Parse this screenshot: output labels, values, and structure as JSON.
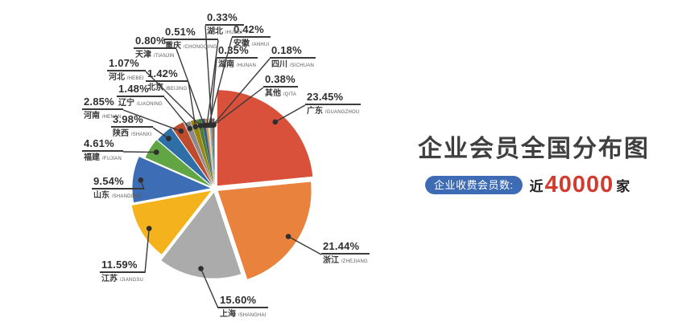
{
  "title": "企业会员全国分布图",
  "stat": {
    "badge_label": "企业收费会员数:",
    "prefix": "近",
    "value": "40000",
    "suffix": "家"
  },
  "colors": {
    "accent_red": "#d23b2e",
    "badge_blue": "#3e6cb4",
    "leader_line": "#3a3a3a",
    "title_text": "#3f3f3f",
    "background": "#ffffff"
  },
  "chart_data": {
    "type": "pie",
    "variant": "exploded-rose",
    "title": "企业会员全国分布图",
    "unit": "%",
    "start_angle_deg": 0,
    "clockwise": true,
    "center": [
      266.5,
      235
    ],
    "radius_base": 82,
    "radius_per_value": 1.58,
    "explode": 5,
    "dot_radius_factor": 0.9,
    "series": [
      {
        "name": "广东",
        "pinyin": "GUANGZHOU",
        "value": 23.45,
        "color": "#d9513a",
        "label": {
          "x": 379,
          "y": 113
        }
      },
      {
        "name": "浙江",
        "pinyin": "ZHEJIANG",
        "value": 21.44,
        "color": "#e8823c",
        "label": {
          "x": 399,
          "y": 299
        }
      },
      {
        "name": "上海",
        "pinyin": "SHANGHAI",
        "value": 15.6,
        "color": "#ababab",
        "label": {
          "x": 271,
          "y": 366
        }
      },
      {
        "name": "江苏",
        "pinyin": "JIANGSU",
        "value": 11.59,
        "color": "#f4b31d",
        "label": {
          "x": 124,
          "y": 322
        }
      },
      {
        "name": "山东",
        "pinyin": "SHANDONG",
        "value": 9.54,
        "color": "#3d6eb5",
        "label": {
          "x": 114,
          "y": 218
        }
      },
      {
        "name": "福建",
        "pinyin": "FUJIAN",
        "value": 4.61,
        "color": "#61a544",
        "label": {
          "x": 102,
          "y": 171
        }
      },
      {
        "name": "陕西",
        "pinyin": "SHANXI",
        "value": 3.98,
        "color": "#2e6fa8",
        "label": {
          "x": 138,
          "y": 141
        }
      },
      {
        "name": "河南",
        "pinyin": "HENAN",
        "value": 2.85,
        "color": "#bf4b2f",
        "label": {
          "x": 102,
          "y": 119
        }
      },
      {
        "name": "辽宁",
        "pinyin": "LIAONING",
        "value": 1.48,
        "color": "#8a8a8a",
        "label": {
          "x": 145,
          "y": 103
        }
      },
      {
        "name": "北京",
        "pinyin": "BEIJING",
        "value": 1.42,
        "color": "#9c8412",
        "label": {
          "x": 181,
          "y": 84
        }
      },
      {
        "name": "河北",
        "pinyin": "HEBEI",
        "value": 1.07,
        "color": "#4e7a33",
        "label": {
          "x": 133,
          "y": 71
        }
      },
      {
        "name": "天津",
        "pinyin": "TIANJIN",
        "value": 0.8,
        "color": "#2e5e86",
        "label": {
          "x": 166,
          "y": 43
        }
      },
      {
        "name": "重庆",
        "pinyin": "CHONGQING",
        "value": 0.51,
        "color": "#dd8c44",
        "label": {
          "x": 203,
          "y": 32
        }
      },
      {
        "name": "安徽",
        "pinyin": "ANHUI",
        "value": 0.42,
        "color": "#ebdcb4",
        "label": {
          "x": 288,
          "y": 29
        }
      },
      {
        "name": "湖南",
        "pinyin": "HUNAN",
        "value": 0.35,
        "color": "#8fb0cb",
        "label": {
          "x": 269,
          "y": 55
        }
      },
      {
        "name": "湖北",
        "pinyin": "HUBEI",
        "value": 0.33,
        "color": "#3f8f8a",
        "label": {
          "x": 255,
          "y": 14
        }
      },
      {
        "name": "四川",
        "pinyin": "SICHUAN",
        "value": 0.18,
        "color": "#a65e3f",
        "label": {
          "x": 335,
          "y": 55
        }
      },
      {
        "name": "其他",
        "pinyin": "QITA",
        "value": 0.38,
        "color": "#4a5e68",
        "label": {
          "x": 327,
          "y": 91
        }
      }
    ]
  }
}
